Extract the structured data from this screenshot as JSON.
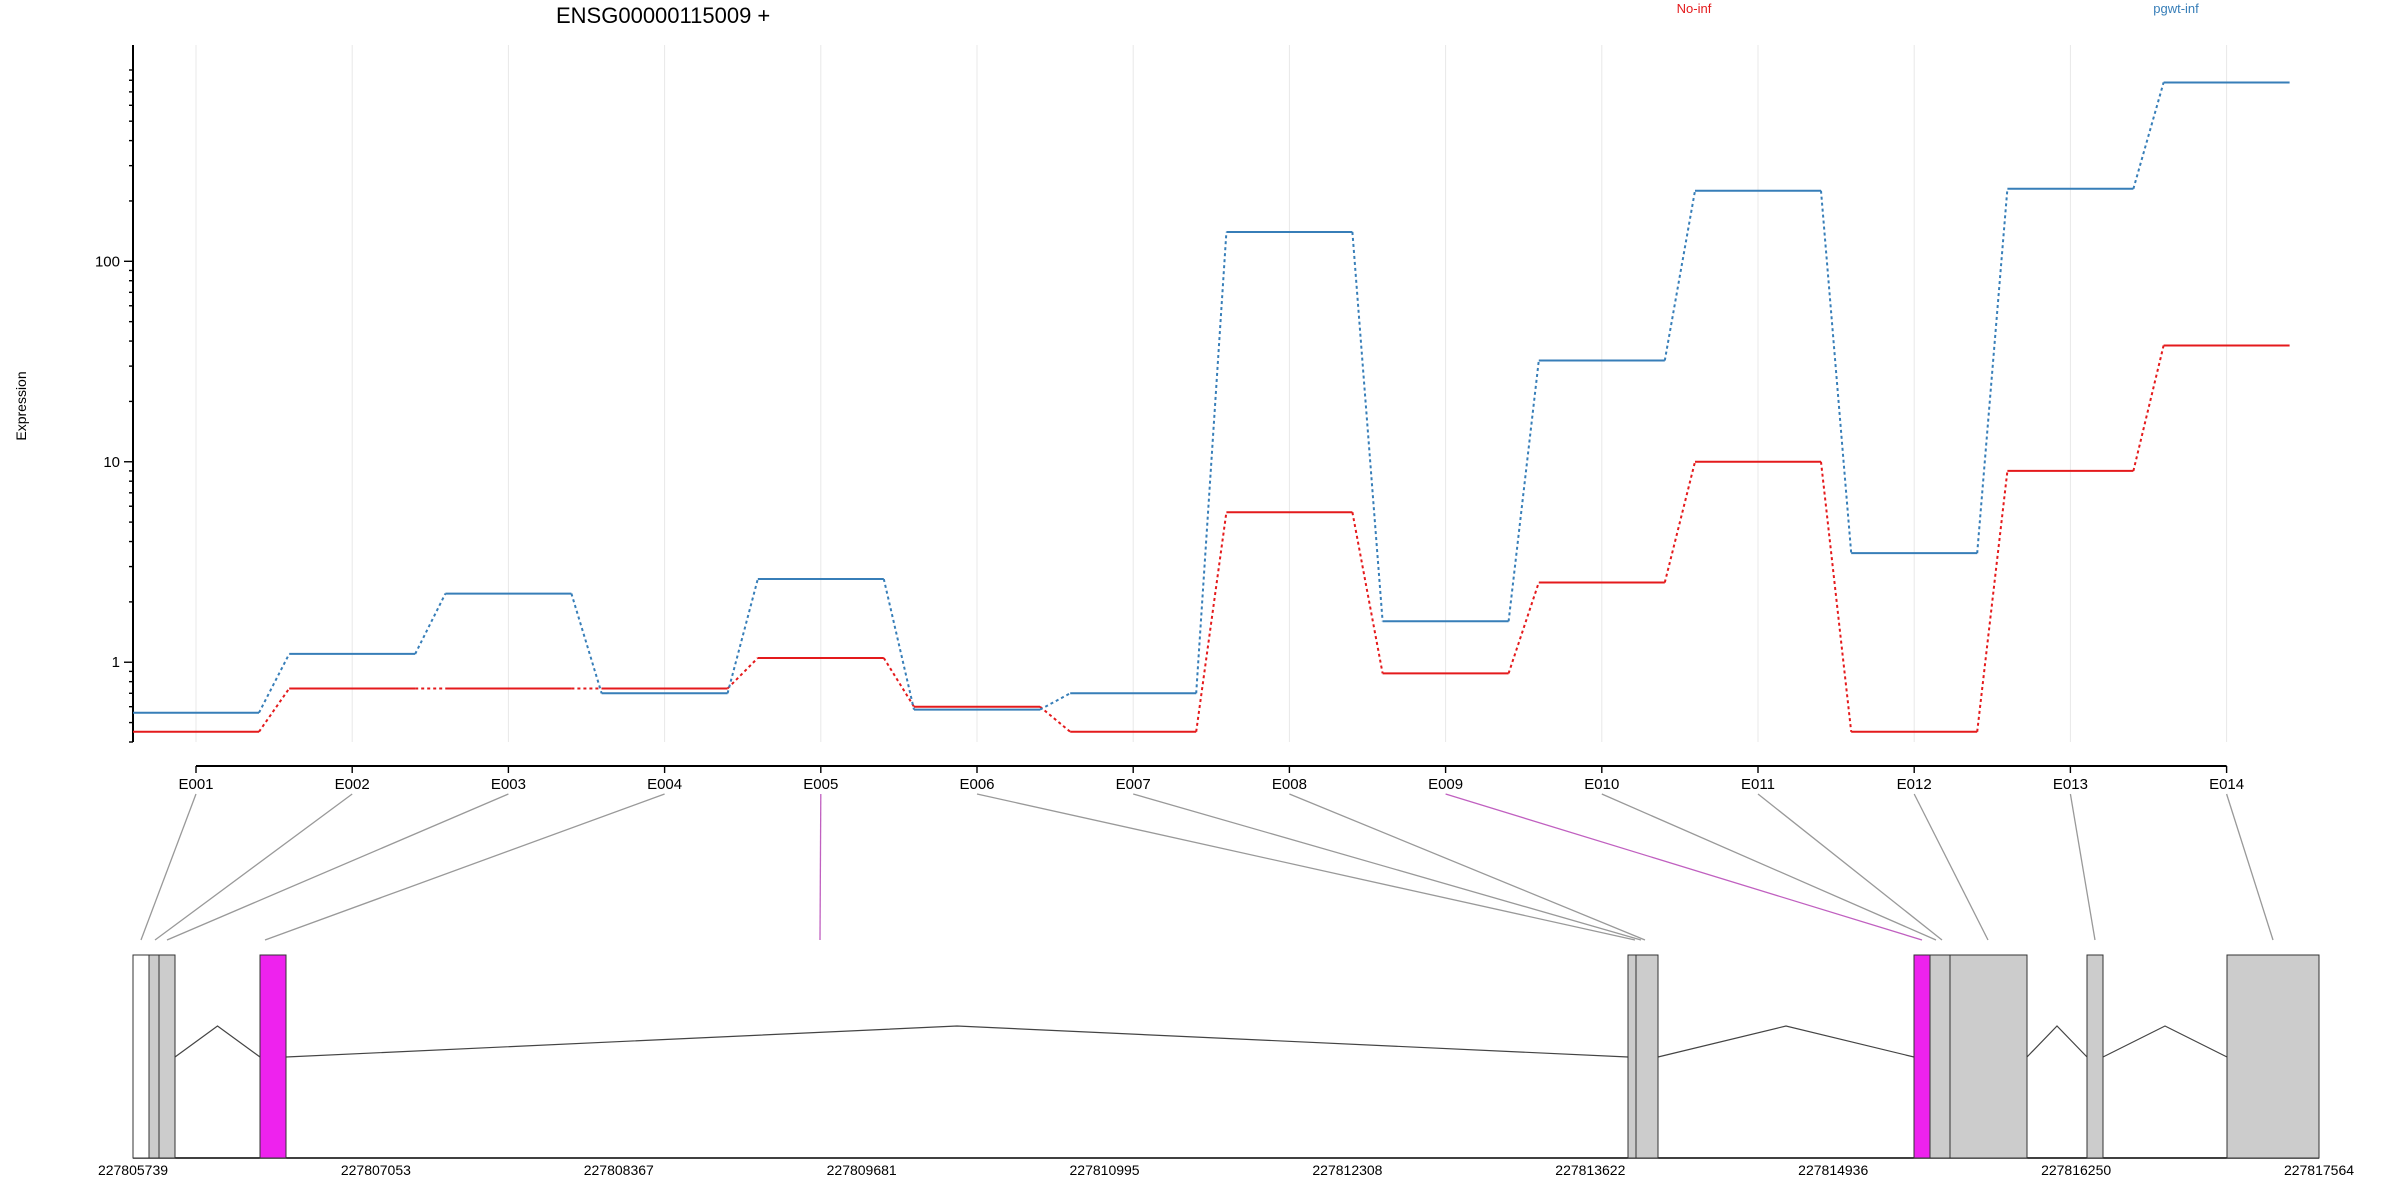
{
  "chart_data": {
    "type": "line",
    "title": "ENSG00000115009 +",
    "ylabel": "Expression",
    "y_scale": "log",
    "ylim": [
      0.4,
      900
    ],
    "yticks": [
      {
        "value": 1,
        "label": "1"
      },
      {
        "value": 10,
        "label": "10"
      },
      {
        "value": 100,
        "label": "100"
      }
    ],
    "categories": [
      "E001",
      "E002",
      "E003",
      "E004",
      "E005",
      "E006",
      "E007",
      "E008",
      "E009",
      "E010",
      "E011",
      "E012",
      "E013",
      "E014"
    ],
    "series": [
      {
        "name": "No-inf",
        "color": "#e41a1c",
        "values": [
          0.45,
          0.74,
          0.74,
          0.74,
          1.05,
          0.6,
          0.45,
          5.6,
          0.88,
          2.5,
          10.0,
          0.45,
          9.0,
          38.0
        ]
      },
      {
        "name": "pgwt-inf",
        "color": "#377eb8",
        "values": [
          0.56,
          1.1,
          2.2,
          0.7,
          2.6,
          0.58,
          0.7,
          140.0,
          1.6,
          32.0,
          225.0,
          3.5,
          230.0,
          780.0
        ]
      }
    ],
    "gene_model": {
      "genomic_range": [
        227805739,
        227817564
      ],
      "axis_labels": [
        "227805739",
        "227807053",
        "227808367",
        "227809681",
        "227810995",
        "227812308",
        "227813622",
        "227814936",
        "227816250",
        "227817564"
      ],
      "exon_colors": {
        "normal": "#cccccc",
        "highlight": "#ee22ee",
        "utr": "#ffffff"
      },
      "highlighted_exons": [
        "E005",
        "E009"
      ]
    }
  }
}
